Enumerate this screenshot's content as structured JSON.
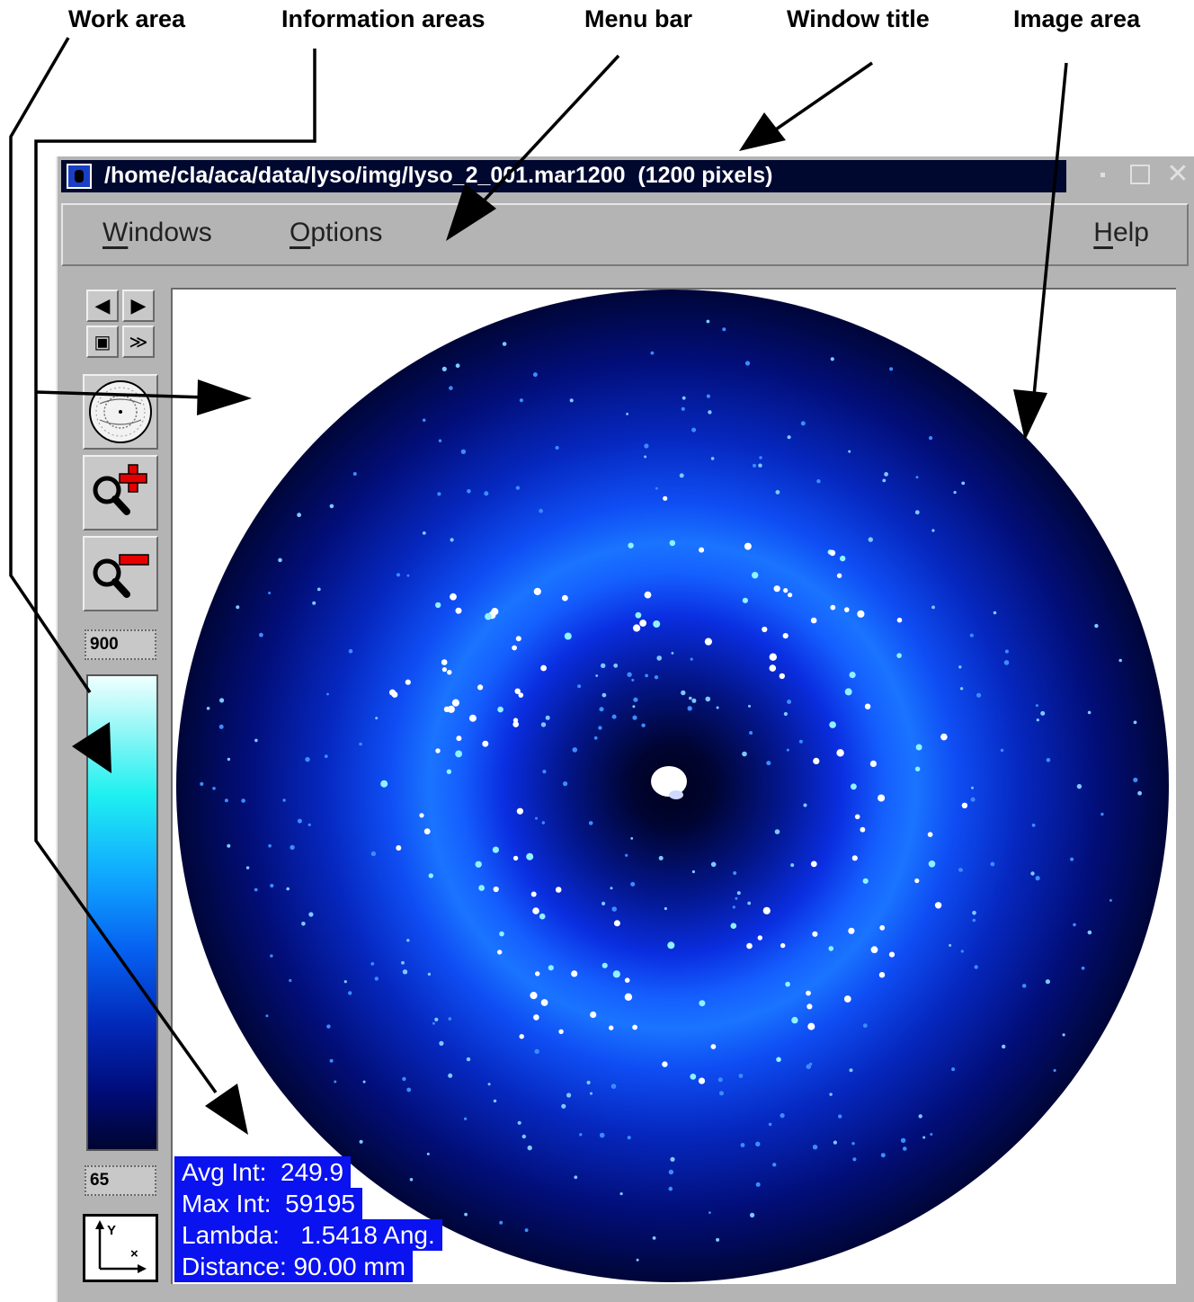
{
  "annotations": {
    "work_area": "Work area",
    "information_areas": "Information areas",
    "menu_bar": "Menu bar",
    "window_title": "Window title",
    "image_area": "Image area"
  },
  "window": {
    "title": "/home/cla/aca/data/lyso/img/lyso_2_001.mar1200  (1200 pixels)"
  },
  "menubar": {
    "windows": {
      "mnemonic": "W",
      "rest": "indows"
    },
    "options": {
      "mnemonic": "O",
      "rest": "ptions"
    },
    "help": {
      "mnemonic": "H",
      "rest": "elp"
    }
  },
  "toolbar": {
    "colorbar_max": "900",
    "colorbar_min": "65"
  },
  "info": {
    "avg_int": "Avg Int:  249.9",
    "max_int": "Max Int:  59195",
    "lambda": "Lambda:   1.5418 Ang.",
    "distance": "Distance: 90.00 mm"
  },
  "colors": {
    "titlebar": "#000830",
    "info_background": "#0a12f0",
    "window_frame": "#b4b4b4"
  }
}
